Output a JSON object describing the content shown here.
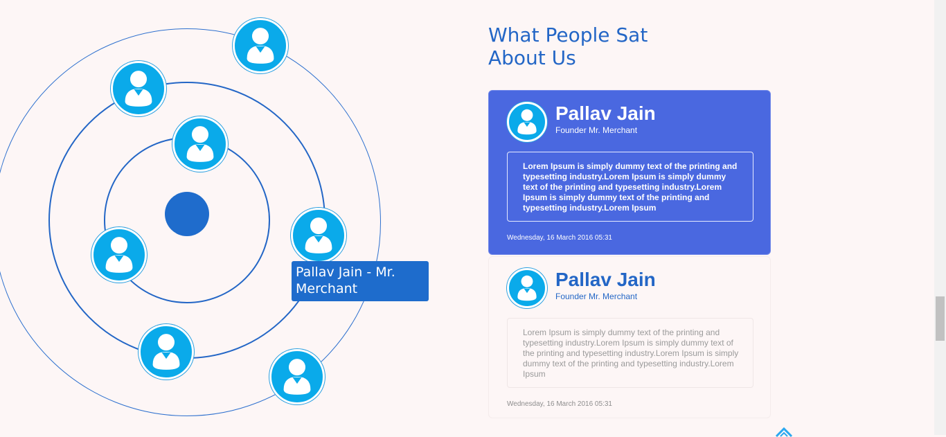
{
  "section": {
    "heading_line1": "What People Sat",
    "heading_line2": "About Us"
  },
  "orbit": {
    "tooltip": "Pallav Jain - Mr. Merchant",
    "avatar_icon": "user-avatar-icon"
  },
  "testimonials": [
    {
      "name": "Pallav Jain",
      "role": "Founder Mr. Merchant",
      "text": "Lorem Ipsum is simply dummy text of the printing and typesetting industry.Lorem Ipsum is simply dummy text of the printing and typesetting industry.Lorem Ipsum is simply dummy text of the printing and typesetting industry.Lorem Ipsum",
      "date": "Wednesday, 16 March 2016 05:31"
    },
    {
      "name": "Pallav Jain",
      "role": "Founder Mr. Merchant",
      "text": "Lorem Ipsum is simply dummy text of the printing and typesetting industry.Lorem Ipsum is simply dummy text of the printing and typesetting industry.Lorem Ipsum is simply dummy text of the printing and typesetting industry.Lorem Ipsum",
      "date": "Wednesday, 16 March 2016 05:31"
    }
  ],
  "colors": {
    "accent": "#2366c6",
    "card_active": "#4a68e0",
    "avatar": "#0aaaea"
  }
}
